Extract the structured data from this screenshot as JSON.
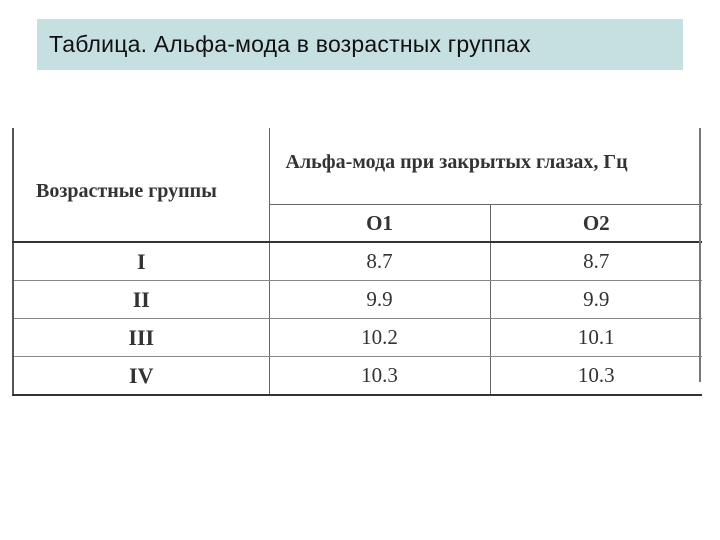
{
  "slide": {
    "title": "Таблица. Альфа-мода в возрастных группах"
  },
  "table": {
    "group_header": "Возрастные группы",
    "alpha_header": "Альфа-мода при закрытых глазах, Гц",
    "columns": [
      "O1",
      "O2"
    ],
    "rows": [
      {
        "group": "I",
        "o1": "8.7",
        "o2": "8.7"
      },
      {
        "group": "II",
        "o1": "9.9",
        "o2": "9.9"
      },
      {
        "group": "III",
        "o1": "10.2",
        "o2": "10.1"
      },
      {
        "group": "IV",
        "o1": "10.3",
        "o2": "10.3"
      }
    ]
  },
  "colors": {
    "title_background": "#c6e0e2",
    "text": "#333333"
  }
}
